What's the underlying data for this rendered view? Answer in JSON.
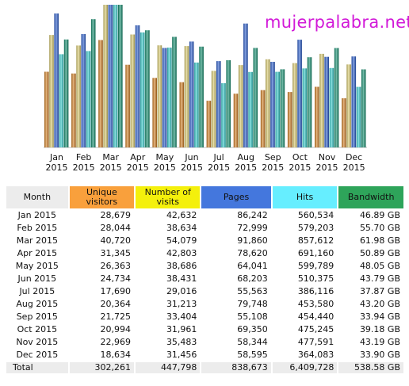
{
  "site": {
    "title": "mujerpalabra.net"
  },
  "colors": {
    "unique_visitors": "#f9a03c",
    "visits": "#f4f00c",
    "pages": "#4477dd",
    "hits": "#66eeff",
    "bandwidth": "#2ea45a",
    "header_neutral": "#ececec"
  },
  "chart_data": {
    "type": "bar",
    "categories": [
      "Jan\n2015",
      "Feb\n2015",
      "Mar\n2015",
      "Apr\n2015",
      "May\n2015",
      "Jun\n2015",
      "Jul\n2015",
      "Aug\n2015",
      "Sep\n2015",
      "Oct\n2015",
      "Nov\n2015",
      "Dec\n2015"
    ],
    "series": [
      {
        "name": "Unique visitors",
        "color": "#f9a03c",
        "values": [
          28679,
          28044,
          40720,
          31345,
          26363,
          24734,
          17690,
          20364,
          21725,
          20994,
          22969,
          18634
        ]
      },
      {
        "name": "Number of visits",
        "color": "#f4f00c",
        "values": [
          42632,
          38634,
          54079,
          42803,
          38686,
          38431,
          29016,
          31213,
          33404,
          31961,
          35483,
          31456
        ]
      },
      {
        "name": "Pages",
        "color": "#4477dd",
        "values": [
          86242,
          72999,
          91860,
          78620,
          64041,
          68203,
          55563,
          79748,
          55108,
          69350,
          58344,
          58595
        ]
      },
      {
        "name": "Hits",
        "color": "#66eeff",
        "values": [
          560534,
          579203,
          857612,
          691160,
          599789,
          510375,
          386116,
          453580,
          454440,
          475245,
          477591,
          364083
        ]
      },
      {
        "name": "Bandwidth",
        "color": "#2ea45a",
        "unit": "GB",
        "values": [
          46.89,
          55.7,
          61.98,
          50.89,
          48.05,
          43.79,
          37.87,
          43.2,
          33.94,
          39.18,
          43.19,
          33.9
        ]
      }
    ],
    "grouping": "visitors/visits/pages/hits each scaled to their own max; bandwidth scaled to its own max"
  },
  "table": {
    "headers": {
      "month": "Month",
      "unique": "Unique visitors",
      "visits": "Number of visits",
      "pages": "Pages",
      "hits": "Hits",
      "bandwidth": "Bandwidth"
    },
    "rows": [
      {
        "month": "Jan 2015",
        "unique": "28,679",
        "visits": "42,632",
        "pages": "86,242",
        "hits": "560,534",
        "bandwidth": "46.89 GB"
      },
      {
        "month": "Feb 2015",
        "unique": "28,044",
        "visits": "38,634",
        "pages": "72,999",
        "hits": "579,203",
        "bandwidth": "55.70 GB"
      },
      {
        "month": "Mar 2015",
        "unique": "40,720",
        "visits": "54,079",
        "pages": "91,860",
        "hits": "857,612",
        "bandwidth": "61.98 GB"
      },
      {
        "month": "Apr 2015",
        "unique": "31,345",
        "visits": "42,803",
        "pages": "78,620",
        "hits": "691,160",
        "bandwidth": "50.89 GB"
      },
      {
        "month": "May 2015",
        "unique": "26,363",
        "visits": "38,686",
        "pages": "64,041",
        "hits": "599,789",
        "bandwidth": "48.05 GB"
      },
      {
        "month": "Jun 2015",
        "unique": "24,734",
        "visits": "38,431",
        "pages": "68,203",
        "hits": "510,375",
        "bandwidth": "43.79 GB"
      },
      {
        "month": "Jul 2015",
        "unique": "17,690",
        "visits": "29,016",
        "pages": "55,563",
        "hits": "386,116",
        "bandwidth": "37.87 GB"
      },
      {
        "month": "Aug 2015",
        "unique": "20,364",
        "visits": "31,213",
        "pages": "79,748",
        "hits": "453,580",
        "bandwidth": "43.20 GB"
      },
      {
        "month": "Sep 2015",
        "unique": "21,725",
        "visits": "33,404",
        "pages": "55,108",
        "hits": "454,440",
        "bandwidth": "33.94 GB"
      },
      {
        "month": "Oct 2015",
        "unique": "20,994",
        "visits": "31,961",
        "pages": "69,350",
        "hits": "475,245",
        "bandwidth": "39.18 GB"
      },
      {
        "month": "Nov 2015",
        "unique": "22,969",
        "visits": "35,483",
        "pages": "58,344",
        "hits": "477,591",
        "bandwidth": "43.19 GB"
      },
      {
        "month": "Dec 2015",
        "unique": "18,634",
        "visits": "31,456",
        "pages": "58,595",
        "hits": "364,083",
        "bandwidth": "33.90 GB"
      }
    ],
    "total": {
      "month": "Total",
      "unique": "302,261",
      "visits": "447,798",
      "pages": "838,673",
      "hits": "6,409,728",
      "bandwidth": "538.58 GB"
    }
  }
}
